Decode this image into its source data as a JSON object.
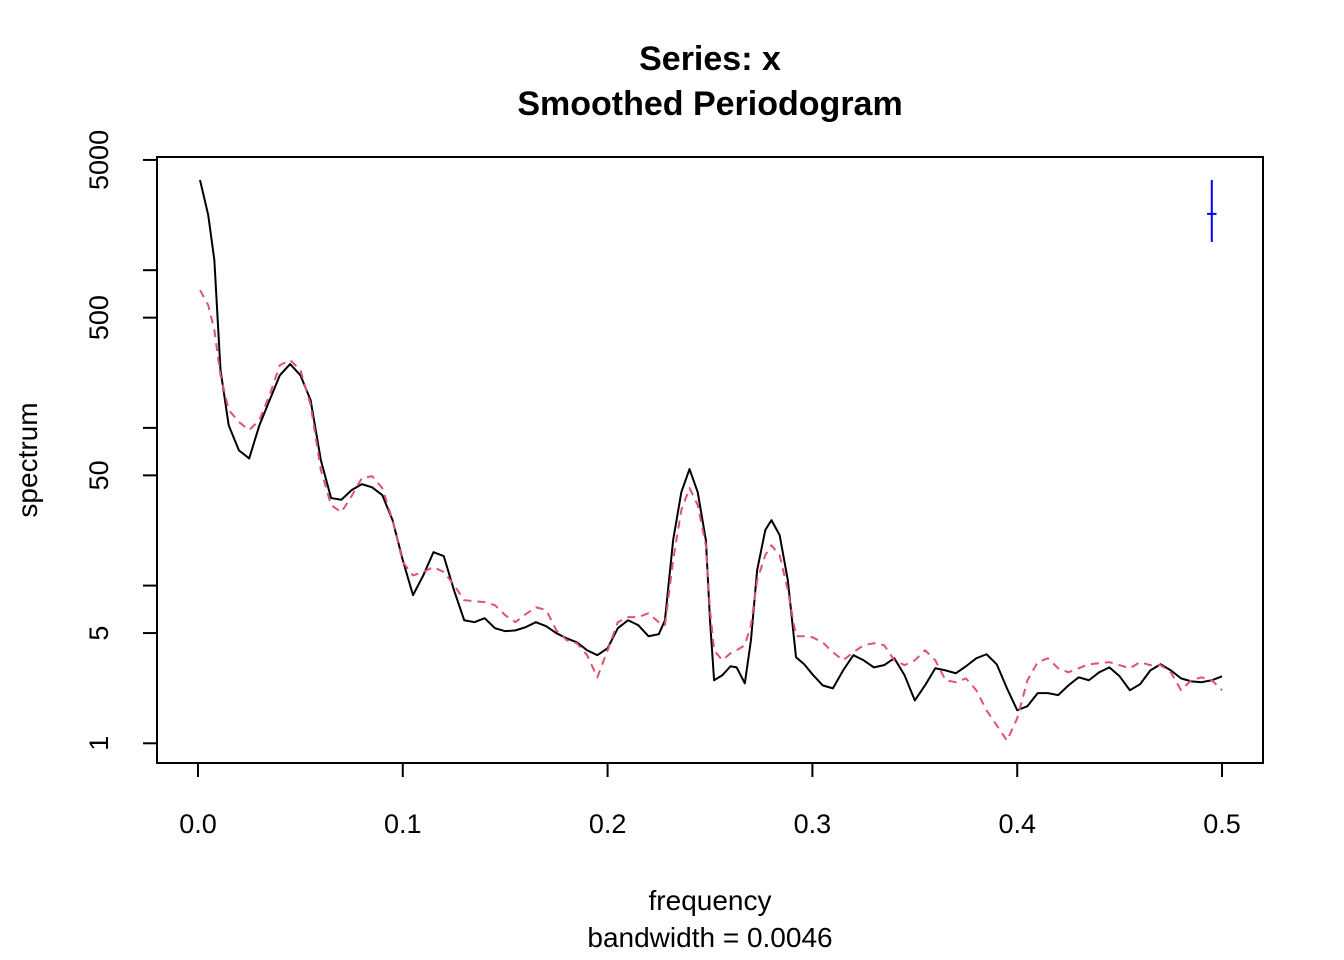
{
  "chart_data": {
    "type": "line",
    "title": "Series: x",
    "subtitle": "Smoothed Periodogram",
    "xlabel": "frequency",
    "sublabel": "bandwidth = 0.0046",
    "ylabel": "spectrum",
    "log_y": true,
    "xlim": [
      -0.02,
      0.52
    ],
    "ylim": [
      0.75,
      5220
    ],
    "xticks": [
      {
        "value": 0,
        "label": "0.0"
      },
      0.1,
      0.2,
      0.3,
      0.4,
      0.5
    ],
    "yticks": [
      1,
      5,
      50,
      500,
      5000
    ],
    "yticks_unlabeled": [
      10,
      100,
      1000
    ],
    "x": [
      0.001,
      0.005,
      0.008,
      0.011,
      0.015,
      0.02,
      0.025,
      0.03,
      0.035,
      0.04,
      0.045,
      0.05,
      0.055,
      0.06,
      0.065,
      0.07,
      0.075,
      0.08,
      0.085,
      0.09,
      0.095,
      0.1,
      0.105,
      0.11,
      0.115,
      0.12,
      0.125,
      0.13,
      0.135,
      0.14,
      0.145,
      0.15,
      0.155,
      0.16,
      0.165,
      0.17,
      0.175,
      0.18,
      0.185,
      0.19,
      0.195,
      0.2,
      0.205,
      0.21,
      0.215,
      0.22,
      0.225,
      0.228,
      0.232,
      0.236,
      0.24,
      0.244,
      0.248,
      0.25,
      0.252,
      0.256,
      0.26,
      0.263,
      0.267,
      0.27,
      0.273,
      0.277,
      0.28,
      0.284,
      0.288,
      0.292,
      0.296,
      0.3,
      0.305,
      0.31,
      0.315,
      0.32,
      0.325,
      0.33,
      0.335,
      0.34,
      0.345,
      0.35,
      0.355,
      0.36,
      0.365,
      0.37,
      0.375,
      0.38,
      0.385,
      0.39,
      0.395,
      0.4,
      0.405,
      0.41,
      0.415,
      0.42,
      0.425,
      0.43,
      0.435,
      0.44,
      0.445,
      0.45,
      0.455,
      0.46,
      0.465,
      0.47,
      0.475,
      0.48,
      0.485,
      0.49,
      0.495,
      0.5
    ],
    "series": [
      {
        "color": "#000000",
        "dash": "solid",
        "values": [
          3730,
          2240,
          1160,
          233,
          104,
          72,
          64,
          104,
          150,
          216,
          254,
          216,
          150,
          62.5,
          35.9,
          35,
          40.3,
          44,
          42,
          37.5,
          26,
          14.5,
          8.7,
          11.6,
          16.3,
          15.4,
          9.35,
          6.03,
          5.86,
          6.21,
          5.37,
          5.14,
          5.2,
          5.45,
          5.86,
          5.53,
          4.99,
          4.63,
          4.37,
          3.89,
          3.62,
          4.01,
          5.37,
          6.03,
          5.61,
          4.77,
          4.92,
          6.03,
          19.4,
          39.1,
          54.8,
          39.1,
          19.4,
          6.03,
          2.51,
          2.7,
          3.08,
          3.03,
          2.4,
          4.51,
          12.5,
          22.5,
          26,
          20.9,
          10.8,
          3.51,
          3.17,
          2.74,
          2.33,
          2.23,
          2.9,
          3.62,
          3.36,
          3.03,
          3.13,
          3.46,
          2.7,
          1.87,
          2.33,
          2.99,
          2.9,
          2.78,
          3.08,
          3.46,
          3.67,
          3.17,
          2.23,
          1.62,
          1.72,
          2.08,
          2.08,
          2.02,
          2.33,
          2.62,
          2.51,
          2.82,
          3.03,
          2.66,
          2.17,
          2.37,
          2.9,
          3.17,
          2.9,
          2.58,
          2.47,
          2.44,
          2.51,
          2.66
        ]
      },
      {
        "color": "#DF536B",
        "dash": "dashed",
        "values": [
          748,
          601,
          418,
          216,
          130,
          109,
          96.8,
          112,
          162,
          250,
          269,
          233,
          140,
          54,
          32.4,
          29.2,
          36.9,
          48,
          49.4,
          41.5,
          26,
          14.1,
          11.6,
          12.2,
          13.1,
          12.2,
          10.1,
          8.08,
          7.96,
          7.85,
          7.51,
          6.49,
          5.86,
          6.59,
          7.29,
          7.0,
          5.2,
          4.51,
          4.31,
          3.62,
          2.62,
          3.89,
          5.86,
          6.31,
          6.31,
          6.68,
          5.86,
          5.61,
          14.5,
          30.1,
          41.5,
          32.4,
          18.0,
          7.0,
          3.89,
          3.36,
          3.72,
          3.89,
          4.19,
          5.61,
          10.8,
          15.6,
          18.0,
          15.6,
          9.35,
          4.77,
          4.77,
          4.7,
          4.37,
          3.78,
          3.36,
          3.78,
          4.19,
          4.31,
          4.19,
          3.36,
          3.13,
          3.36,
          3.89,
          3.36,
          2.51,
          2.44,
          2.58,
          2.17,
          1.62,
          1.3,
          1.04,
          1.44,
          2.51,
          3.27,
          3.46,
          2.99,
          2.82,
          2.99,
          3.17,
          3.22,
          3.27,
          3.13,
          2.99,
          3.27,
          3.13,
          3.13,
          2.82,
          2.17,
          2.51,
          2.62,
          2.51,
          2.17
        ]
      }
    ],
    "ci_bar": {
      "x": 0.495,
      "width": 0.0046,
      "center": 2275,
      "lower": 1510,
      "upper": 3730,
      "color": "#0000FF"
    }
  }
}
